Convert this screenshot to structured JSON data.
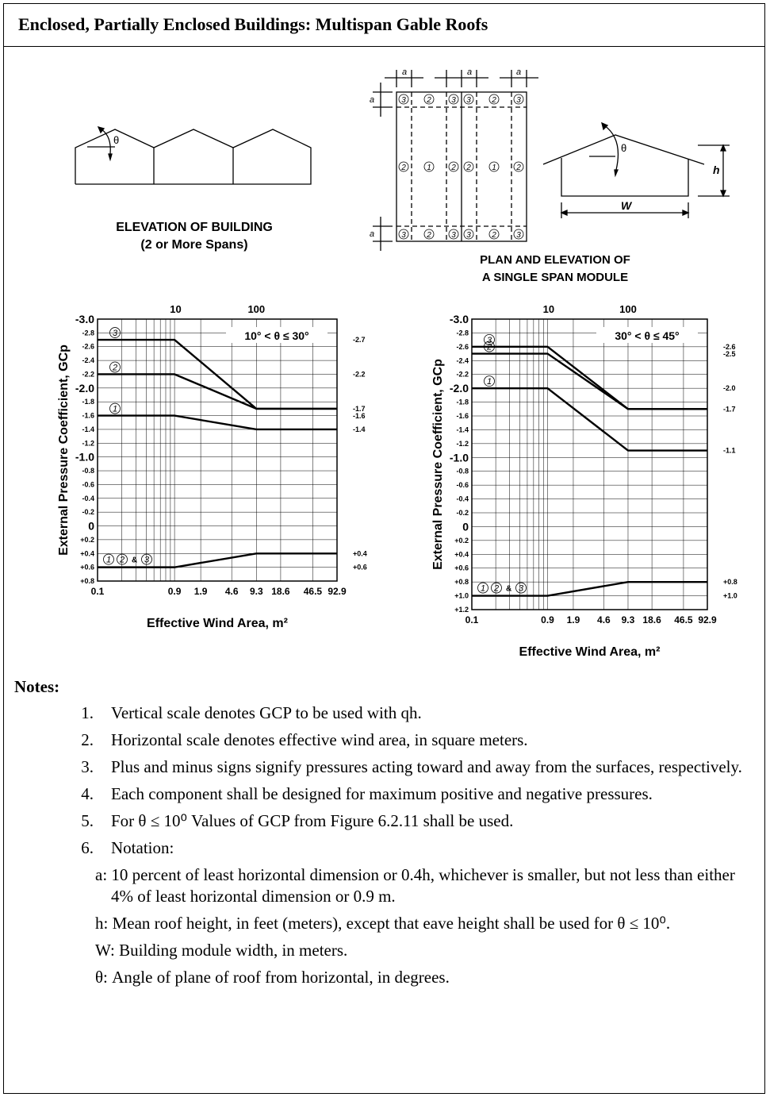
{
  "title": "Enclosed, Partially Enclosed Buildings: Multispan Gable Roofs",
  "figures": {
    "elevation_caption": [
      "ELEVATION OF BUILDING",
      "(2 or More Spans)"
    ],
    "plan_caption": [
      "PLAN AND ELEVATION OF",
      "A SINGLE SPAN MODULE"
    ],
    "theta": "θ",
    "dim_a": "a",
    "dim_h": "h",
    "dim_w": "W",
    "zone_1": "1",
    "zone_2": "2",
    "zone_3": "3"
  },
  "chart_data": [
    {
      "type": "line",
      "title": "10° < θ ≤ 30°",
      "ylabel": "External Pressure Coefficient, GCp",
      "xlabel": "Effective Wind Area, m²",
      "x_scale": "log",
      "xlim": [
        0.1,
        92.9
      ],
      "ylim": [
        -3.0,
        0.8
      ],
      "y_reversed": true,
      "x_ticks_bottom": [
        "0.1",
        "0.9",
        "1.9",
        "4.6",
        "9.3",
        "18.6",
        "46.5",
        "92.9"
      ],
      "x_ticks_top": [
        "10",
        "100"
      ],
      "y_ticks": [
        "-3.0",
        "-2.8",
        "-2.6",
        "-2.4",
        "-2.2",
        "-2.0",
        "-1.8",
        "-1.6",
        "-1.4",
        "-1.2",
        "-1.0",
        "-0.8",
        "-0.6",
        "-0.4",
        "-0.2",
        "0",
        "+0.2",
        "+0.4",
        "+0.6",
        "+0.8"
      ],
      "grid": true,
      "series": [
        {
          "name": "3",
          "x": [
            0.1,
            0.9,
            9.3,
            92.9
          ],
          "y": [
            -2.7,
            -2.7,
            -1.7,
            -1.7
          ],
          "end_label": "-2.7"
        },
        {
          "name": "2",
          "x": [
            0.1,
            0.9,
            9.3,
            92.9
          ],
          "y": [
            -2.2,
            -2.2,
            -1.7,
            -1.7
          ],
          "end_label": "-2.2"
        },
        {
          "name": "1",
          "x": [
            0.1,
            0.9,
            9.3,
            92.9
          ],
          "y": [
            -1.6,
            -1.6,
            -1.4,
            -1.4
          ],
          "end_label": "-1.6"
        },
        {
          "name": "1 2 & 3",
          "x": [
            0.1,
            0.9,
            9.3,
            92.9
          ],
          "y": [
            0.6,
            0.6,
            0.4,
            0.4
          ]
        }
      ],
      "right_labels": [
        {
          "value": -2.7,
          "text": "-2.7"
        },
        {
          "value": -2.2,
          "text": "-2.2"
        },
        {
          "value": -1.7,
          "text": "-1.7"
        },
        {
          "value": -1.6,
          "text": "-1.6"
        },
        {
          "value": -1.4,
          "text": "-1.4"
        },
        {
          "value": 0.4,
          "text": "+0.4"
        },
        {
          "value": 0.6,
          "text": "+0.6"
        }
      ]
    },
    {
      "type": "line",
      "title": "30° < θ ≤ 45°",
      "ylabel": "External Pressure Coefficient, GCp",
      "xlabel": "Effective Wind Area, m²",
      "x_scale": "log",
      "xlim": [
        0.1,
        92.9
      ],
      "ylim": [
        -3.0,
        1.2
      ],
      "y_reversed": true,
      "x_ticks_bottom": [
        "0.1",
        "0.9",
        "1.9",
        "4.6",
        "9.3",
        "18.6",
        "46.5",
        "92.9"
      ],
      "x_ticks_top": [
        "10",
        "100"
      ],
      "y_ticks": [
        "-3.0",
        "-2.8",
        "-2.6",
        "-2.4",
        "-2.2",
        "-2.0",
        "-1.8",
        "-1.6",
        "-1.4",
        "-1.2",
        "-1.0",
        "-0.8",
        "-0.6",
        "-0.4",
        "-0.2",
        "0",
        "+0.2",
        "+0.4",
        "+0.6",
        "+0.8",
        "+1.0",
        "+1.2"
      ],
      "grid": true,
      "series": [
        {
          "name": "3",
          "x": [
            0.1,
            0.9,
            9.3,
            92.9
          ],
          "y": [
            -2.6,
            -2.6,
            -1.7,
            -1.7
          ]
        },
        {
          "name": "2",
          "x": [
            0.1,
            0.9,
            9.3,
            92.9
          ],
          "y": [
            -2.5,
            -2.5,
            -1.7,
            -1.7
          ]
        },
        {
          "name": "1",
          "x": [
            0.1,
            0.9,
            9.3,
            92.9
          ],
          "y": [
            -2.0,
            -2.0,
            -1.1,
            -1.1
          ]
        },
        {
          "name": "1 2 & 3",
          "x": [
            0.1,
            0.9,
            9.3,
            92.9
          ],
          "y": [
            1.0,
            1.0,
            0.8,
            0.8
          ]
        }
      ],
      "right_labels": [
        {
          "value": -2.6,
          "text": "-2.6"
        },
        {
          "value": -2.5,
          "text": "-2.5"
        },
        {
          "value": -2.0,
          "text": "-2.0"
        },
        {
          "value": -1.7,
          "text": "-1.7"
        },
        {
          "value": -1.1,
          "text": "-1.1"
        },
        {
          "value": 0.8,
          "text": "+0.8"
        },
        {
          "value": 1.0,
          "text": "+1.0"
        }
      ]
    }
  ],
  "notes": {
    "heading": "Notes:",
    "items": [
      {
        "num": "1.",
        "text": "Vertical scale denotes GCP to be used with qh."
      },
      {
        "num": "2.",
        "text": "Horizontal scale denotes effective wind area, in square meters."
      },
      {
        "num": "3.",
        "text": "Plus and minus signs signify pressures acting toward and away from the surfaces, respectively."
      },
      {
        "num": "4.",
        "text": "Each component shall be designed for maximum positive and negative pressures."
      },
      {
        "num": "5.",
        "text": "For θ ≤ 10⁰ Values of GCP from Figure 6.2.11 shall be used."
      },
      {
        "num": "6.",
        "text": "Notation:"
      }
    ],
    "notation": [
      "a: 10 percent of least horizontal dimension or 0.4h, whichever is smaller, but not less than either 4% of least horizontal dimension or 0.9 m.",
      "h: Mean roof height, in feet (meters), except that eave height shall be used for θ ≤ 10⁰.",
      "W: Building module width, in meters.",
      "θ: Angle of plane of roof from horizontal, in degrees."
    ]
  }
}
